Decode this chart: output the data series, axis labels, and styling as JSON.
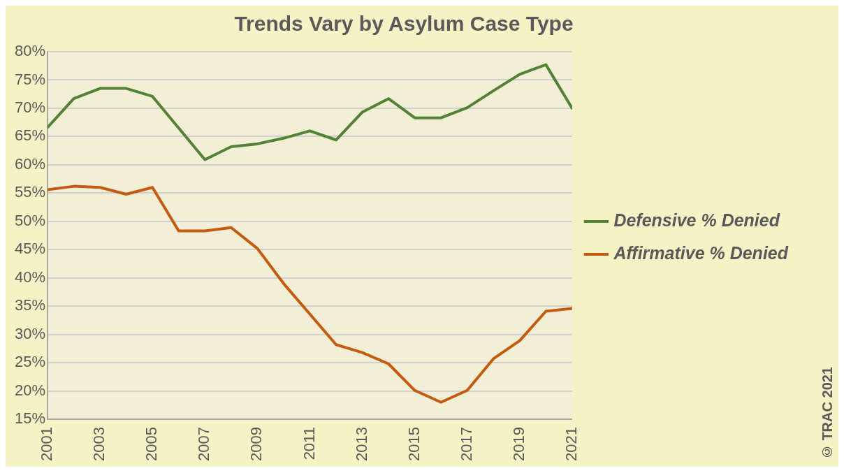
{
  "chart_data": {
    "type": "line",
    "title": "Trends Vary by Asylum Case Type",
    "x": [
      2001,
      2002,
      2003,
      2004,
      2005,
      2006,
      2007,
      2008,
      2009,
      2010,
      2011,
      2012,
      2013,
      2014,
      2015,
      2016,
      2017,
      2018,
      2019,
      2020,
      2021
    ],
    "series": [
      {
        "name": "Defensive % Denied",
        "color": "#538135",
        "values": [
          66.6,
          71.7,
          73.5,
          73.5,
          72.1,
          66.5,
          60.9,
          63.2,
          63.7,
          64.7,
          66,
          64.4,
          69.3,
          71.7,
          68.3,
          68.3,
          70.1,
          73.1,
          76,
          77.7,
          70
        ]
      },
      {
        "name": "Affirmative % Denied",
        "color": "#c55a11",
        "values": [
          55.6,
          56.2,
          56,
          54.8,
          56,
          48.3,
          48.3,
          48.9,
          45.2,
          39,
          33.6,
          28.2,
          26.8,
          24.8,
          20.1,
          18,
          20.1,
          25.7,
          28.9,
          34.1,
          34.6
        ]
      }
    ],
    "xlim": [
      2001,
      2021
    ],
    "xticks": [
      2001,
      2003,
      2005,
      2007,
      2009,
      2011,
      2013,
      2015,
      2017,
      2019,
      2021
    ],
    "ylim": [
      15,
      80
    ],
    "yticks": [
      {
        "value": 15,
        "label": "15%"
      },
      {
        "value": 20,
        "label": "20%"
      },
      {
        "value": 25,
        "label": "25%"
      },
      {
        "value": 30,
        "label": "30%"
      },
      {
        "value": 35,
        "label": "35%"
      },
      {
        "value": 40,
        "label": "40%"
      },
      {
        "value": 45,
        "label": "45%"
      },
      {
        "value": 50,
        "label": "50%"
      },
      {
        "value": 55,
        "label": "55%"
      },
      {
        "value": 60,
        "label": "60%"
      },
      {
        "value": 65,
        "label": "65%"
      },
      {
        "value": 70,
        "label": "70%"
      },
      {
        "value": 75,
        "label": "75%"
      },
      {
        "value": 80,
        "label": "80%"
      }
    ],
    "grid": "y",
    "legend": "right",
    "marker": "none",
    "line_style": "solid",
    "annotations": [
      "© TRAC 2021"
    ]
  }
}
